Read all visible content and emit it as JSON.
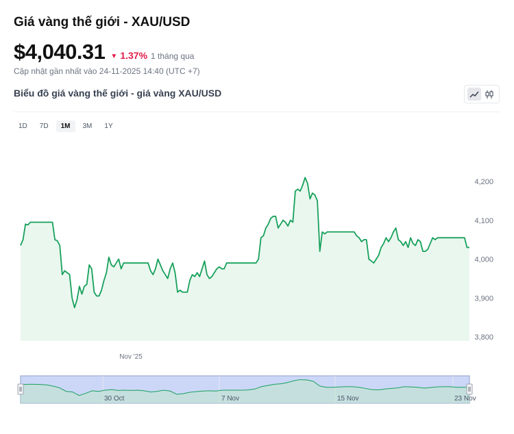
{
  "header": {
    "title": "Giá vàng thế giới - XAU/USD",
    "price": "$4,040.31",
    "change_pct": "1.37%",
    "change_period": "1 tháng qua",
    "updated": "Cập nhật gần nhất vào 24-11-2025 14:40 (UTC +7)"
  },
  "chart_section": {
    "subtitle": "Biểu đồ giá vàng thế giới - giá vàng XAU/USD"
  },
  "ranges": [
    {
      "label": "1D"
    },
    {
      "label": "7D"
    },
    {
      "label": "1M",
      "active": true
    },
    {
      "label": "3M"
    },
    {
      "label": "1Y"
    }
  ],
  "colors": {
    "line": "#16a05a",
    "fill": "#eaf7ef",
    "negative": "#e11d48",
    "navigator_fill": "#ccd7f8",
    "navigator_border": "#8f9fc8"
  },
  "icons": [
    "line-chart-icon",
    "candlestick-icon",
    "caret-down-icon",
    "navigator-handle-icon"
  ],
  "chart_data": {
    "type": "area",
    "ylim": [
      3800,
      4230
    ],
    "yticks": [
      {
        "v": 3800,
        "label": "3,800"
      },
      {
        "v": 3900,
        "label": "3,900"
      },
      {
        "v": 4000,
        "label": "4,000"
      },
      {
        "v": 4100,
        "label": "4,100"
      },
      {
        "v": 4200,
        "label": "4,200"
      }
    ],
    "x_label": "Nov '25",
    "navigator_labels": [
      "30 Oct",
      "7 Nov",
      "15 Nov",
      "23 Nov"
    ],
    "grid": false,
    "values": [
      4035,
      4050,
      4090,
      4088,
      4095,
      4095,
      4095,
      4095,
      4095,
      4095,
      4095,
      4095,
      4095,
      4095,
      4050,
      4047,
      4035,
      3960,
      3970,
      3965,
      3960,
      3900,
      3875,
      3895,
      3930,
      3910,
      3930,
      3935,
      3985,
      3975,
      3915,
      3905,
      3905,
      3920,
      3945,
      3965,
      4005,
      3985,
      3980,
      3990,
      4000,
      3975,
      3990,
      3990,
      3990,
      3990,
      3990,
      3990,
      3990,
      3990,
      3990,
      3990,
      3990,
      3970,
      3960,
      3975,
      4000,
      3985,
      3970,
      3960,
      3950,
      3975,
      3990,
      3965,
      3915,
      3920,
      3915,
      3915,
      3915,
      3945,
      3960,
      3955,
      3965,
      3955,
      3975,
      3995,
      3960,
      3950,
      3955,
      3965,
      3975,
      3980,
      3975,
      3975,
      3990,
      3990,
      3990,
      3990,
      3990,
      3990,
      3990,
      3990,
      3990,
      3990,
      3990,
      3990,
      3990,
      4000,
      4055,
      4060,
      4080,
      4090,
      4105,
      4110,
      4110,
      4080,
      4090,
      4100,
      4095,
      4085,
      4100,
      4095,
      4175,
      4180,
      4175,
      4190,
      4210,
      4195,
      4155,
      4170,
      4165,
      4150,
      4020,
      4070,
      4065,
      4070,
      4070,
      4070,
      4070,
      4070,
      4070,
      4070,
      4070,
      4070,
      4070,
      4070,
      4070,
      4060,
      4055,
      4045,
      4050,
      4050,
      4000,
      3995,
      3990,
      4000,
      4010,
      4030,
      4040,
      4055,
      4045,
      4055,
      4070,
      4080,
      4050,
      4045,
      4035,
      4045,
      4030,
      4055,
      4040,
      4035,
      4050,
      4045,
      4020,
      4020,
      4025,
      4040,
      4055,
      4050,
      4055,
      4055,
      4055,
      4055,
      4055,
      4055,
      4055,
      4055,
      4055,
      4055,
      4055,
      4055,
      4030,
      4030
    ],
    "navigator_values": [
      4085,
      4090,
      4090,
      4088,
      4080,
      4060,
      4030,
      3970,
      3960,
      3900,
      3935,
      3980,
      3970,
      3990,
      4000,
      3985,
      3990,
      3985,
      3990,
      3980,
      3960,
      3970,
      3990,
      3975,
      3920,
      3930,
      3955,
      3965,
      3975,
      3980,
      3975,
      3990,
      3990,
      3990,
      3990,
      3995,
      4010,
      4050,
      4070,
      4090,
      4100,
      4120,
      4150,
      4170,
      4165,
      4140,
      4060,
      4040,
      4040,
      4045,
      4050,
      4050,
      4040,
      4020,
      4000,
      3995,
      4010,
      4020,
      4030,
      4050,
      4045,
      4040,
      4025,
      4035,
      4045,
      4050,
      4050,
      4040,
      4040,
      4040
    ]
  }
}
